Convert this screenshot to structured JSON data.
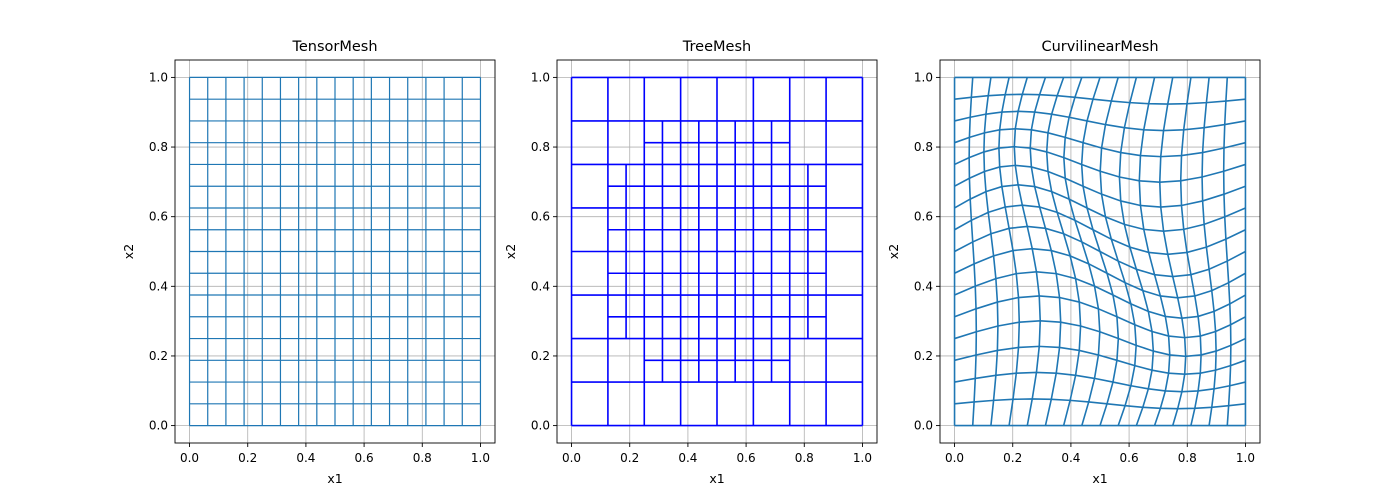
{
  "chart_data": [
    {
      "type": "mesh",
      "title": "TensorMesh",
      "xlabel": "x1",
      "ylabel": "x2",
      "xlim": [
        -0.05,
        1.05
      ],
      "ylim": [
        -0.05,
        1.05
      ],
      "xticks": [
        "0.0",
        "0.2",
        "0.4",
        "0.6",
        "0.8",
        "1.0"
      ],
      "yticks": [
        "0.0",
        "0.2",
        "0.4",
        "0.6",
        "0.8",
        "1.0"
      ],
      "grid": true,
      "mesh_color": "#1f77b4",
      "x_nodes": [
        0.0,
        0.0625,
        0.125,
        0.1875,
        0.25,
        0.3125,
        0.375,
        0.4375,
        0.5,
        0.5625,
        0.625,
        0.6875,
        0.75,
        0.8125,
        0.875,
        0.9375,
        1.0
      ],
      "y_nodes": [
        0.0,
        0.0625,
        0.125,
        0.1875,
        0.25,
        0.3125,
        0.375,
        0.4375,
        0.5,
        0.5625,
        0.625,
        0.6875,
        0.75,
        0.8125,
        0.875,
        0.9375,
        1.0
      ]
    },
    {
      "type": "mesh",
      "title": "TreeMesh",
      "xlabel": "x1",
      "ylabel": "x2",
      "xlim": [
        -0.05,
        1.05
      ],
      "ylim": [
        -0.05,
        1.05
      ],
      "xticks": [
        "0.0",
        "0.2",
        "0.4",
        "0.6",
        "0.8",
        "1.0"
      ],
      "yticks": [
        "0.0",
        "0.2",
        "0.4",
        "0.6",
        "0.8",
        "1.0"
      ],
      "grid": true,
      "mesh_color": "#0000ff",
      "segments": [
        [
          0,
          0,
          1,
          0
        ],
        [
          0,
          1,
          1,
          1
        ],
        [
          0,
          0,
          0,
          1
        ],
        [
          1,
          0,
          1,
          1
        ],
        [
          0,
          0.125,
          1,
          0.125
        ],
        [
          0,
          0.25,
          1,
          0.25
        ],
        [
          0,
          0.375,
          1,
          0.375
        ],
        [
          0,
          0.5,
          1,
          0.5
        ],
        [
          0,
          0.625,
          1,
          0.625
        ],
        [
          0,
          0.75,
          1,
          0.75
        ],
        [
          0,
          0.875,
          1,
          0.875
        ],
        [
          0.125,
          0,
          0.125,
          1
        ],
        [
          0.25,
          0,
          0.25,
          1
        ],
        [
          0.375,
          0,
          0.375,
          1
        ],
        [
          0.5,
          0,
          0.5,
          1
        ],
        [
          0.625,
          0,
          0.625,
          1
        ],
        [
          0.75,
          0,
          0.75,
          1
        ],
        [
          0.875,
          0,
          0.875,
          1
        ],
        [
          0.125,
          0.3125,
          0.875,
          0.3125
        ],
        [
          0.125,
          0.4375,
          0.875,
          0.4375
        ],
        [
          0.125,
          0.5625,
          0.875,
          0.5625
        ],
        [
          0.125,
          0.6875,
          0.875,
          0.6875
        ],
        [
          0.25,
          0.1875,
          0.75,
          0.1875
        ],
        [
          0.25,
          0.8125,
          0.75,
          0.8125
        ],
        [
          0.1875,
          0.25,
          0.1875,
          0.75
        ],
        [
          0.8125,
          0.25,
          0.8125,
          0.75
        ],
        [
          0.3125,
          0.125,
          0.3125,
          0.875
        ],
        [
          0.4375,
          0.125,
          0.4375,
          0.875
        ],
        [
          0.5625,
          0.125,
          0.5625,
          0.875
        ],
        [
          0.6875,
          0.125,
          0.6875,
          0.875
        ]
      ]
    },
    {
      "type": "mesh",
      "title": "CurvilinearMesh",
      "xlabel": "x1",
      "ylabel": "x2",
      "xlim": [
        -0.05,
        1.05
      ],
      "ylim": [
        -0.05,
        1.05
      ],
      "xticks": [
        "0.0",
        "0.2",
        "0.4",
        "0.6",
        "0.8",
        "1.0"
      ],
      "yticks": [
        "0.0",
        "0.2",
        "0.4",
        "0.6",
        "0.8",
        "1.0"
      ],
      "grid": true,
      "mesh_color": "#1f77b4",
      "nodes_per_side": 17,
      "distortion_amplitude_x": 0.07,
      "distortion_amplitude_y": 0.045
    }
  ]
}
